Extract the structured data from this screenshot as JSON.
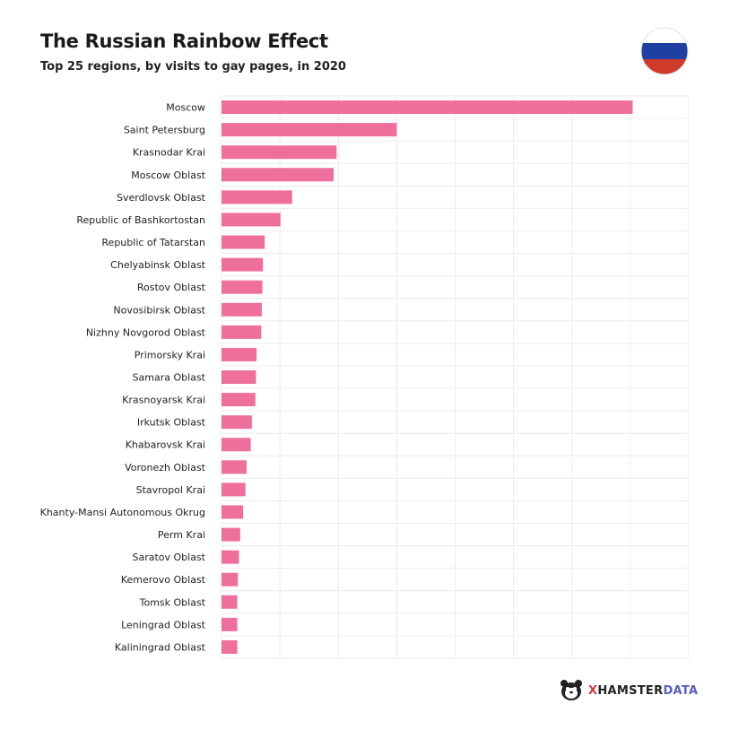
{
  "header": {
    "title": "The Russian Rainbow Effect",
    "subtitle": "Top 25 regions, by visits to gay pages, in 2020",
    "flag_colors": [
      "#ffffff",
      "#1f3fa3",
      "#cf3b2b"
    ]
  },
  "brand": {
    "logo_x": "X",
    "logo_hamster": "HAMSTER",
    "logo_data": "DATA"
  },
  "chart_data": {
    "type": "bar",
    "orientation": "horizontal",
    "title": "The Russian Rainbow Effect",
    "subtitle": "Top 25 regions, by visits to gay pages, in 2020",
    "xlabel": "",
    "ylabel": "",
    "x_tick_labels_shown": false,
    "value_units": "relative (gridline intervals; no scale printed)",
    "xlim": [
      0,
      8
    ],
    "grid": true,
    "bar_color": "#ef6f9c",
    "categories": [
      "Moscow",
      "Saint Petersburg",
      "Krasnodar Krai",
      "Moscow Oblast",
      "Sverdlovsk Oblast",
      "Republic of Bashkortostan",
      "Republic of Tatarstan",
      "Chelyabinsk Oblast",
      "Rostov Oblast",
      "Novosibirsk Oblast",
      "Nizhny Novgorod Oblast",
      "Primorsky Krai",
      "Samara Oblast",
      "Krasnoyarsk Krai",
      "Irkutsk Oblast",
      "Khabarovsk Krai",
      "Voronezh Oblast",
      "Stavropol Krai",
      "Khanty-Mansi Autonomous Okrug",
      "Perm Krai",
      "Saratov Oblast",
      "Kemerovo Oblast",
      "Tomsk Oblast",
      "Leningrad Oblast",
      "Kaliningrad Oblast"
    ],
    "values": [
      7.04,
      3.0,
      1.97,
      1.92,
      1.21,
      1.01,
      0.74,
      0.71,
      0.7,
      0.69,
      0.68,
      0.6,
      0.59,
      0.58,
      0.52,
      0.5,
      0.43,
      0.41,
      0.37,
      0.32,
      0.3,
      0.28,
      0.27,
      0.27,
      0.27
    ]
  }
}
